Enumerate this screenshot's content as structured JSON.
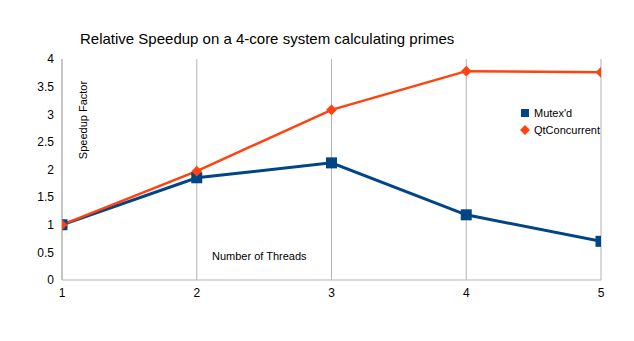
{
  "chart_data": {
    "type": "line",
    "title": "Relative Speedup on a 4-core system calculating primes",
    "x_label": "Number of Threads",
    "y_label": "Speedup Factor",
    "x": [
      1,
      2,
      3,
      4,
      5
    ],
    "series": [
      {
        "name": "Mutex'd",
        "color": "#004586",
        "marker": "square",
        "values": [
          1,
          1.85,
          2.12,
          1.18,
          0.7
        ]
      },
      {
        "name": "QtConcurrent",
        "color": "#ff420e",
        "marker": "diamond",
        "values": [
          1,
          1.97,
          3.08,
          3.78,
          3.76
        ]
      }
    ],
    "xlim": [
      1,
      5
    ],
    "xticks": [
      1,
      2,
      3,
      4,
      5
    ],
    "ylim": [
      0,
      4
    ],
    "yticks": [
      0,
      0.5,
      1,
      1.5,
      2,
      2.5,
      3,
      3.5,
      4
    ],
    "grid": true,
    "legend": "right"
  }
}
